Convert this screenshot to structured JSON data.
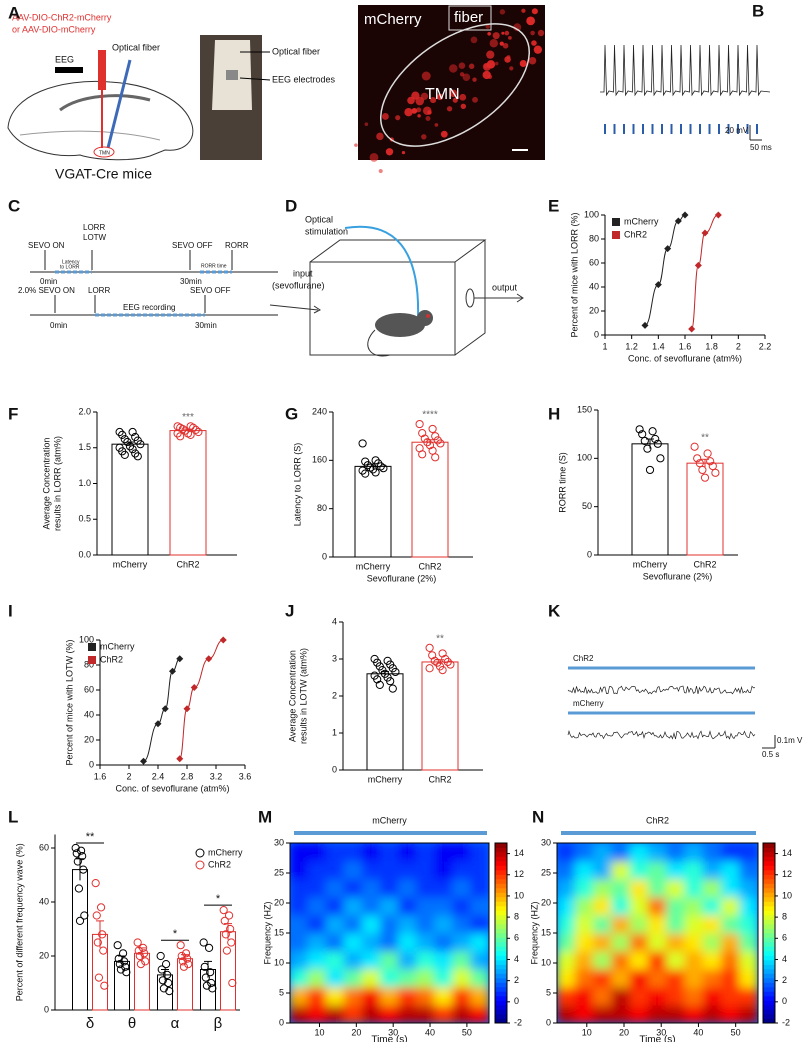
{
  "panel_labels": [
    "A",
    "B",
    "C",
    "D",
    "E",
    "F",
    "G",
    "H",
    "I",
    "J",
    "K",
    "L",
    "M",
    "N"
  ],
  "panel_a": {
    "virus": [
      "AAV-DIO-ChR2-mCherry",
      "or AAV-DIO-mCherry"
    ],
    "eeg": "EEG",
    "optical_fiber": "Optical fiber",
    "tmn": "TMN",
    "mouse_line": "VGAT-Cre mice",
    "photo_labels": [
      "Optical fiber",
      "EEG electrodes"
    ],
    "image_labels": [
      "mCherry",
      "fiber",
      "TMN"
    ]
  },
  "panel_b": {
    "scale_voltage": "20 mV",
    "scale_time": "50 ms"
  },
  "panel_c": {
    "top": {
      "sevo_on": "SEVO ON",
      "lorr": "LORR",
      "lotw": "LOTW",
      "latency": [
        "Latency",
        "to LORR"
      ],
      "sevo_off": "SEVO OFF",
      "rorr": "RORR",
      "rorr_time": "RORR time",
      "start": "0min",
      "end": "30min"
    },
    "bottom": {
      "sevo_on": "2.0% SEVO ON",
      "lorr": "LORR",
      "recording": "EEG recording",
      "sevo_off": "SEVO OFF",
      "start": "0min",
      "end": "30min"
    }
  },
  "panel_d": {
    "stimulation": [
      "Optical",
      "stimulation"
    ],
    "input": [
      "input",
      "(sevoflurane)"
    ],
    "output": "output"
  },
  "panel_k": {
    "traces": [
      "ChR2",
      "mCherry"
    ],
    "scale_voltage": "0.1m V",
    "scale_time": "0.5 s"
  },
  "chart_data": [
    {
      "type": "line",
      "xlabel": "Conc. of sevoflurane (atm%)",
      "ylabel": "Percent of mice with LORR (%)",
      "xlim": [
        1,
        2.2
      ],
      "xticks": [
        1,
        1.2,
        1.4,
        1.6,
        1.8,
        2,
        2.2
      ],
      "ylim": [
        0,
        100
      ],
      "yticks": [
        0,
        20,
        40,
        60,
        80,
        100
      ],
      "legend": "upper left",
      "series": [
        {
          "name": "mCherry",
          "color": "#222222",
          "x": [
            1.3,
            1.4,
            1.47,
            1.55,
            1.6
          ],
          "values": [
            8,
            42,
            72,
            95,
            100
          ]
        },
        {
          "name": "ChR2",
          "color": "#c0282a",
          "x": [
            1.65,
            1.7,
            1.75,
            1.85
          ],
          "values": [
            5,
            58,
            85,
            100
          ]
        }
      ]
    },
    {
      "type": "bar",
      "ylabel": [
        "Average Concentration",
        "results in LORR (atm%)"
      ],
      "categories": [
        "mCherry",
        "ChR2"
      ],
      "colors": [
        "#000000",
        "#e0302e"
      ],
      "values": [
        1.55,
        1.74
      ],
      "errors": [
        0.03,
        0.02
      ],
      "points": [
        [
          1.72,
          1.72,
          1.68,
          1.65,
          1.62,
          1.6,
          1.58,
          1.55,
          1.52,
          1.5,
          1.48,
          1.45,
          1.42,
          1.4,
          1.38
        ],
        [
          1.8,
          1.8,
          1.78,
          1.78,
          1.76,
          1.75,
          1.74,
          1.72,
          1.7,
          1.7,
          1.68,
          1.66
        ]
      ],
      "ylim": [
        0,
        2
      ],
      "yticks": [
        {
          "value": 0,
          "label": "0.0"
        },
        0.5,
        {
          "value": 1,
          "label": "1.0"
        },
        1.5,
        {
          "value": 2,
          "label": "2.0"
        }
      ],
      "annotations": [
        "***"
      ]
    },
    {
      "type": "bar",
      "ylabel": "Latency to LORR (S)",
      "xlabel": "Sevoflurane (2%)",
      "categories": [
        "mCherry",
        "ChR2"
      ],
      "colors": [
        "#000000",
        "#e0302e"
      ],
      "values": [
        150,
        190
      ],
      "errors": [
        4,
        4
      ],
      "points": [
        [
          188,
          160,
          158,
          155,
          152,
          150,
          148,
          147,
          145,
          143,
          140,
          138
        ],
        [
          220,
          212,
          205,
          200,
          196,
          193,
          190,
          188,
          185,
          180,
          176,
          170,
          165
        ]
      ],
      "ylim": [
        0,
        240
      ],
      "yticks": [
        0,
        80,
        160,
        240
      ],
      "annotations": [
        "****"
      ]
    },
    {
      "type": "bar",
      "ylabel": "RORR time (S)",
      "xlabel": "Sevoflurane (2%)",
      "categories": [
        "mCherry",
        "ChR2"
      ],
      "colors": [
        "#000000",
        "#e0302e"
      ],
      "values": [
        115,
        95
      ],
      "errors": [
        5,
        4
      ],
      "points": [
        [
          130,
          128,
          125,
          120,
          118,
          115,
          110,
          100,
          88
        ],
        [
          112,
          105,
          100,
          97,
          95,
          92,
          88,
          85,
          80
        ]
      ],
      "ylim": [
        0,
        150
      ],
      "yticks": [
        0,
        50,
        100,
        150
      ],
      "annotations": [
        "**"
      ]
    },
    {
      "type": "line",
      "xlabel": "Conc. of sevoflurane (atm%)",
      "ylabel": "Percent of mice with LOTW (%)",
      "xlim": [
        1.6,
        3.6
      ],
      "xticks": [
        1.6,
        2,
        2.4,
        2.8,
        3.2,
        3.6
      ],
      "ylim": [
        0,
        100
      ],
      "yticks": [
        0,
        20,
        40,
        60,
        80,
        100
      ],
      "legend": "upper left",
      "series": [
        {
          "name": "mCherry",
          "color": "#222222",
          "x": [
            2.2,
            2.4,
            2.5,
            2.6,
            2.7
          ],
          "values": [
            3,
            33,
            45,
            75,
            85
          ]
        },
        {
          "name": "ChR2",
          "color": "#c0282a",
          "x": [
            2.7,
            2.8,
            2.9,
            3.1,
            3.3
          ],
          "values": [
            5,
            45,
            62,
            85,
            100
          ]
        }
      ]
    },
    {
      "type": "bar",
      "ylabel": [
        "Average Concentration",
        "results in LOTW (atm%)"
      ],
      "categories": [
        "mCherry",
        "ChR2"
      ],
      "colors": [
        "#000000",
        "#e0302e"
      ],
      "values": [
        2.6,
        2.92
      ],
      "errors": [
        0.06,
        0.06
      ],
      "points": [
        [
          3,
          2.95,
          2.9,
          2.85,
          2.8,
          2.75,
          2.7,
          2.65,
          2.6,
          2.55,
          2.5,
          2.45,
          2.4,
          2.3,
          2.2
        ],
        [
          3.3,
          3.15,
          3.1,
          3,
          2.95,
          2.92,
          2.9,
          2.85,
          2.8,
          2.75,
          2.7
        ]
      ],
      "ylim": [
        0,
        4
      ],
      "yticks": [
        0,
        1,
        2,
        3,
        4
      ],
      "annotations": [
        "**"
      ]
    },
    {
      "type": "bar",
      "ylabel": "Percent of different frequency wave (%)",
      "categories": [
        "δ",
        "θ",
        "α",
        "β"
      ],
      "ylim": [
        0,
        65
      ],
      "yticks": [
        0,
        20,
        40,
        60
      ],
      "legend": "upper right",
      "annotations": [
        "**",
        "*",
        "*"
      ],
      "series": [
        {
          "name": "mCherry",
          "color": "#000000",
          "values": [
            52,
            18,
            13,
            15
          ],
          "errors": [
            4,
            2,
            2,
            3
          ],
          "points": [
            [
              60,
              59,
              58,
              57,
              55,
              52,
              45,
              35,
              33
            ],
            [
              24,
              21,
              19,
              18,
              17,
              16,
              15,
              14
            ],
            [
              20,
              17,
              15,
              13,
              11,
              10,
              8,
              7
            ],
            [
              25,
              23,
              16,
              14,
              12,
              10,
              9,
              8
            ]
          ]
        },
        {
          "name": "ChR2",
          "color": "#e0302e",
          "values": [
            28,
            21,
            19,
            29
          ],
          "errors": [
            5,
            2,
            1.5,
            3
          ],
          "points": [
            [
              47,
              38,
              35,
              28,
              25,
              22,
              12,
              9
            ],
            [
              25,
              23,
              22,
              21,
              20,
              18,
              17
            ],
            [
              24,
              21,
              20,
              19,
              18,
              17,
              16
            ],
            [
              37,
              35,
              33,
              30,
              28,
              25,
              22,
              10
            ]
          ]
        }
      ]
    },
    {
      "type": "heatmap",
      "title": "mCherry",
      "xlabel": "Time (s)",
      "ylabel": "Frequency (HZ)",
      "xlim": [
        2,
        56
      ],
      "xticks": [
        10,
        20,
        30,
        40,
        50
      ],
      "ylim": [
        0,
        30
      ],
      "yticks": [
        0,
        5,
        10,
        15,
        20,
        25,
        30
      ],
      "clim": [
        -2,
        15
      ],
      "cticks": [
        -2,
        0,
        2,
        4,
        6,
        8,
        10,
        12,
        14
      ],
      "colormap": "jet",
      "z": [
        [
          14,
          13,
          14,
          12,
          14,
          13,
          14,
          14,
          12,
          14,
          13
        ],
        [
          10,
          12,
          9,
          11,
          13,
          10,
          12,
          11,
          9,
          12,
          10
        ],
        [
          5,
          7,
          4,
          6,
          8,
          5,
          6,
          7,
          5,
          8,
          6
        ],
        [
          3,
          4,
          5,
          3,
          4,
          6,
          3,
          5,
          4,
          6,
          3
        ],
        [
          2,
          3,
          2,
          4,
          3,
          2,
          4,
          3,
          2,
          3,
          4
        ],
        [
          2,
          1,
          3,
          2,
          4,
          2,
          3,
          2,
          3,
          2,
          1
        ],
        [
          1,
          2,
          1,
          3,
          2,
          3,
          1,
          2,
          2,
          1,
          2
        ],
        [
          1,
          1,
          2,
          1,
          2,
          1,
          2,
          1,
          1,
          2,
          1
        ],
        [
          0,
          1,
          1,
          2,
          1,
          1,
          1,
          1,
          0,
          1,
          1
        ],
        [
          0,
          0,
          1,
          1,
          0,
          1,
          0,
          1,
          0,
          0,
          1
        ]
      ]
    },
    {
      "type": "heatmap",
      "title": "ChR2",
      "xlabel": "Time (s)",
      "ylabel": "Frequency (HZ)",
      "xlim": [
        2,
        56
      ],
      "xticks": [
        10,
        20,
        30,
        40,
        50
      ],
      "ylim": [
        0,
        30
      ],
      "yticks": [
        0,
        5,
        10,
        15,
        20,
        25,
        30
      ],
      "clim": [
        -2,
        15
      ],
      "cticks": [
        -2,
        0,
        2,
        4,
        6,
        8,
        10,
        12,
        14
      ],
      "colormap": "jet",
      "z": [
        [
          14,
          13,
          14,
          14,
          13,
          14,
          14,
          13,
          14,
          13,
          14
        ],
        [
          12,
          13,
          11,
          14,
          12,
          13,
          12,
          11,
          13,
          12,
          12
        ],
        [
          9,
          11,
          12,
          10,
          13,
          11,
          12,
          10,
          11,
          12,
          9
        ],
        [
          8,
          10,
          7,
          11,
          9,
          12,
          8,
          10,
          9,
          11,
          8
        ],
        [
          6,
          9,
          10,
          7,
          11,
          8,
          10,
          9,
          7,
          10,
          6
        ],
        [
          5,
          8,
          6,
          10,
          7,
          9,
          6,
          8,
          9,
          6,
          5
        ],
        [
          4,
          7,
          9,
          5,
          8,
          11,
          6,
          7,
          5,
          8,
          4
        ],
        [
          3,
          5,
          7,
          6,
          9,
          6,
          8,
          5,
          7,
          4,
          3
        ],
        [
          2,
          4,
          3,
          8,
          5,
          6,
          4,
          5,
          3,
          4,
          2
        ],
        [
          1,
          2,
          3,
          2,
          4,
          3,
          2,
          3,
          2,
          1,
          1
        ]
      ]
    }
  ]
}
